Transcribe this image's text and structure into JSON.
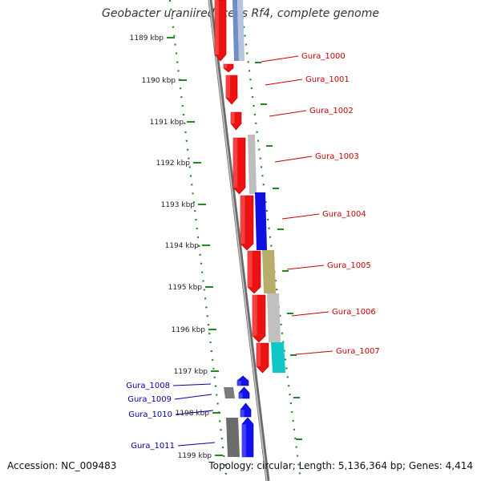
{
  "title": "Geobacter uraniireducens Rf4, complete genome",
  "footer": {
    "accession": "Accession: NC_009483",
    "summary": "Topology: circular; Length: 5,136,364 bp; Genes: 4,414"
  },
  "scale": {
    "unit": "kbp",
    "ticks": [
      "1189 kbp",
      "1190 kbp",
      "1191 kbp",
      "1192 kbp",
      "1193 kbp",
      "1194 kbp",
      "1195 kbp",
      "1196 kbp",
      "1197 kbp",
      "1198 kbp",
      "1199 kbp"
    ]
  },
  "colors": {
    "forward_gene": "#ee1111",
    "reverse_gene": "#1111ee",
    "tick": "#228822",
    "backbone": "#888888",
    "label_forward": "#cc0000",
    "label_reverse": "#0000aa"
  },
  "genes": [
    {
      "label": "Gura_1000",
      "strand": "forward"
    },
    {
      "label": "Gura_1001",
      "strand": "forward"
    },
    {
      "label": "Gura_1002",
      "strand": "forward"
    },
    {
      "label": "Gura_1003",
      "strand": "forward"
    },
    {
      "label": "Gura_1004",
      "strand": "forward"
    },
    {
      "label": "Gura_1005",
      "strand": "forward"
    },
    {
      "label": "Gura_1006",
      "strand": "forward"
    },
    {
      "label": "Gura_1007",
      "strand": "forward"
    },
    {
      "label": "Gura_1008",
      "strand": "reverse"
    },
    {
      "label": "Gura_1009",
      "strand": "reverse"
    },
    {
      "label": "Gura_1010",
      "strand": "reverse"
    },
    {
      "label": "Gura_1011",
      "strand": "reverse"
    }
  ]
}
